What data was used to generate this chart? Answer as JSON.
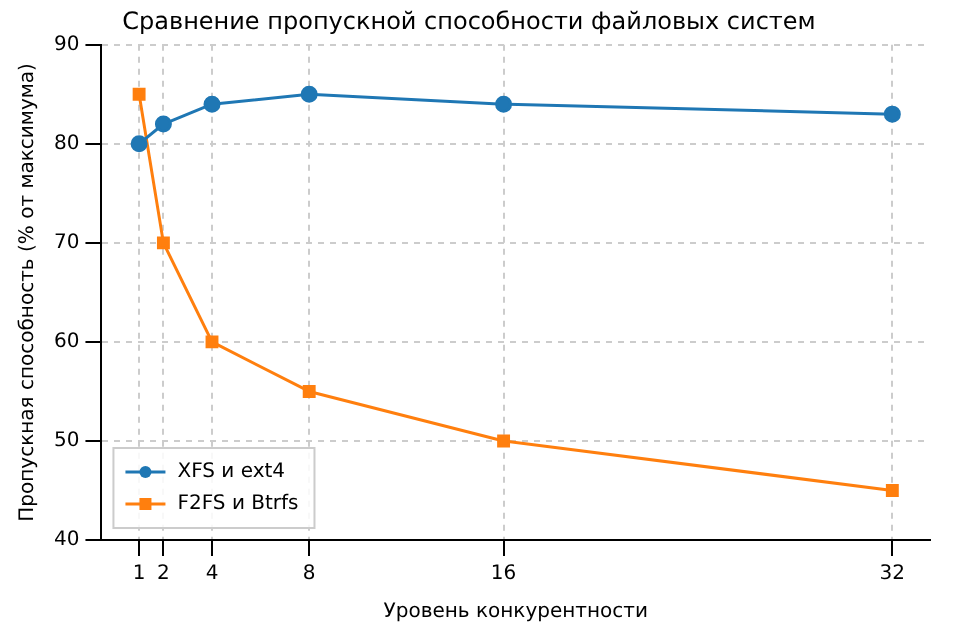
{
  "chart_data": {
    "type": "line",
    "title": "Сравнение пропускной способности файловых систем",
    "xlabel": "Уровень конкурентности",
    "ylabel": "Пропускная способность (% от максимума)",
    "x": [
      1,
      2,
      4,
      8,
      16,
      32
    ],
    "series": [
      {
        "name": "XFS и ext4",
        "color": "#1f77b4",
        "marker": "circle",
        "values": [
          80,
          82,
          84,
          85,
          84,
          83
        ]
      },
      {
        "name": "F2FS и Btrfs",
        "color": "#ff7f0e",
        "marker": "square",
        "values": [
          85,
          70,
          60,
          55,
          50,
          45
        ]
      }
    ],
    "xlim": [
      -0.55,
      33.55
    ],
    "xticks": [
      1,
      2,
      4,
      8,
      16,
      32
    ],
    "ylim": [
      40,
      90
    ],
    "yticks": [
      40,
      50,
      60,
      70,
      80,
      90
    ],
    "grid": true,
    "legend": "bottom left",
    "line_style": "solid"
  }
}
